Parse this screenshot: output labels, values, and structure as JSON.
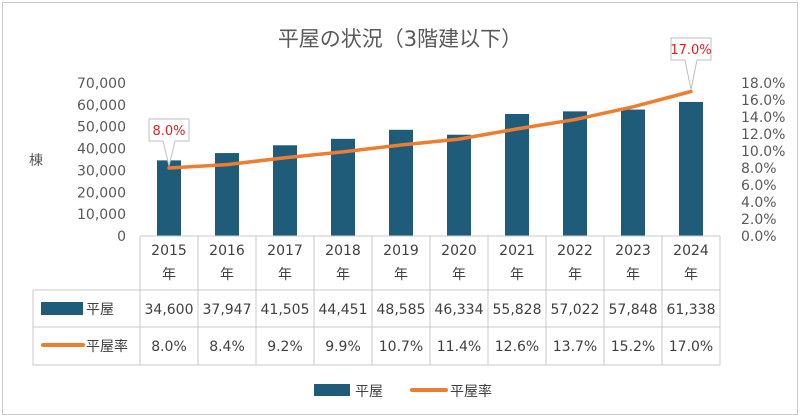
{
  "chart_data": {
    "type": "bar",
    "title": "平屋の状況（3階建以下）",
    "ylabel": "棟",
    "categories": [
      "2015年",
      "2016年",
      "2017年",
      "2018年",
      "2019年",
      "2020年",
      "2021年",
      "2022年",
      "2023年",
      "2024年"
    ],
    "y_ticks": [
      "0",
      "10,000",
      "20,000",
      "30,000",
      "40,000",
      "50,000",
      "60,000",
      "70,000"
    ],
    "y2_ticks": [
      "0.0%",
      "2.0%",
      "4.0%",
      "6.0%",
      "8.0%",
      "10.0%",
      "12.0%",
      "14.0%",
      "16.0%",
      "18.0%"
    ],
    "ylim": [
      0,
      70000
    ],
    "y2lim": [
      0,
      18
    ],
    "series": [
      {
        "name": "平屋",
        "type": "bar",
        "axis": "left",
        "color": "#1f5c7a",
        "values": [
          34600,
          37947,
          41505,
          44451,
          48585,
          46334,
          55828,
          57022,
          57848,
          61338
        ],
        "labels": [
          "34,600",
          "37,947",
          "41,505",
          "44,451",
          "48,585",
          "46,334",
          "55,828",
          "57,022",
          "57,848",
          "61,338"
        ]
      },
      {
        "name": "平屋率",
        "type": "line",
        "axis": "right",
        "color": "#ed7d31",
        "values": [
          8.0,
          8.4,
          9.2,
          9.9,
          10.7,
          11.4,
          12.6,
          13.7,
          15.2,
          17.0
        ],
        "labels": [
          "8.0%",
          "8.4%",
          "9.2%",
          "9.9%",
          "10.7%",
          "11.4%",
          "12.6%",
          "13.7%",
          "15.2%",
          "17.0%"
        ]
      }
    ],
    "callouts": [
      {
        "index": 0,
        "text": "8.0%"
      },
      {
        "index": 9,
        "text": "17.0%"
      }
    ],
    "data_table": true,
    "legend": "bottom",
    "grid": false
  }
}
